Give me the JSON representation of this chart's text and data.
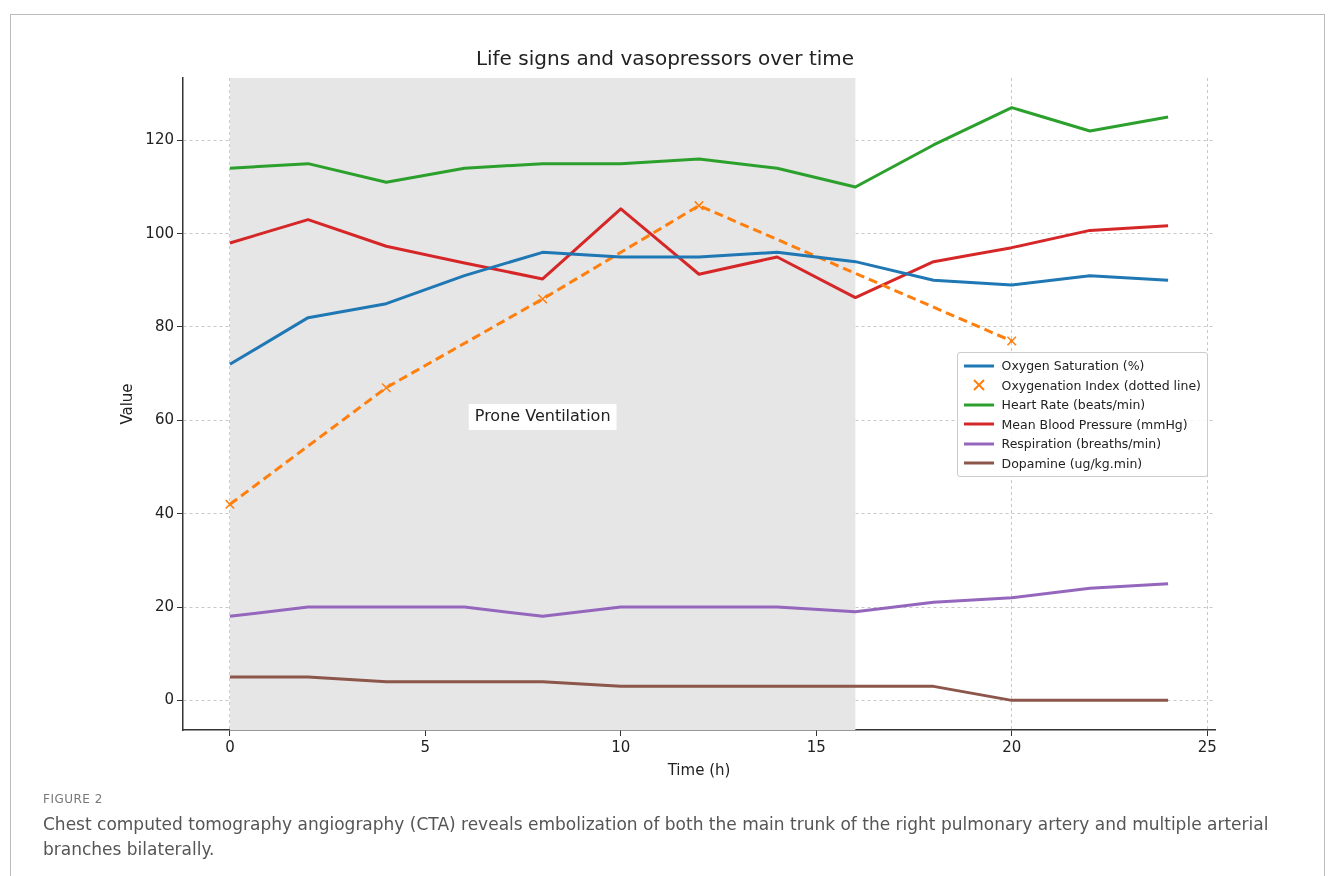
{
  "chart_data": {
    "type": "line",
    "title": "Life signs and vasopressors over time",
    "xlabel": "Time (h)",
    "ylabel": "Value",
    "x": [
      0,
      2,
      4,
      6,
      8,
      10,
      12,
      14,
      16,
      18,
      20,
      22,
      24
    ],
    "xlim": [
      -1.2,
      25.2
    ],
    "xticks": [
      0,
      5,
      10,
      15,
      20,
      25
    ],
    "ylim": [
      -6.35,
      133.35
    ],
    "yticks": [
      0,
      20,
      40,
      60,
      80,
      100,
      120
    ],
    "grid": true,
    "legend": "right",
    "marker": "none",
    "line_style": "solid",
    "series": [
      {
        "name": "Oxygen Saturation (%)",
        "color": "#1f77b4",
        "values": [
          72,
          82,
          85,
          91,
          96,
          95,
          95,
          96,
          94,
          90,
          89,
          91,
          90
        ]
      },
      {
        "name": "Oxygenation Index (dotted line)",
        "color": "#ff7f0e",
        "x": [
          0,
          4,
          8,
          12,
          20
        ],
        "values": [
          42,
          67,
          86,
          106,
          77
        ],
        "marker": "cross",
        "line_style": "dashed"
      },
      {
        "name": "Heart Rate (beats/min)",
        "color": "#2ca02c",
        "values": [
          114,
          115,
          111,
          114,
          115,
          115,
          116,
          114,
          110,
          119,
          127,
          122,
          125
        ]
      },
      {
        "name": "Mean Blood Pressure (mmHg)",
        "color": "#d62728",
        "values": [
          98,
          103,
          97.3,
          93.7,
          90.3,
          105.3,
          91.3,
          95,
          86.3,
          94,
          97,
          100.7,
          101.7
        ]
      },
      {
        "name": "Respiration (breaths/min)",
        "color": "#9467bd",
        "values": [
          18,
          20,
          20,
          20,
          18,
          20,
          20,
          20,
          19,
          21,
          22,
          24,
          25
        ]
      },
      {
        "name": "Dopamine (ug/kg.min)",
        "color": "#8c564b",
        "values": [
          5,
          5,
          4,
          4,
          4,
          3,
          3,
          3,
          3,
          3,
          0,
          0,
          0
        ]
      }
    ],
    "bands": [
      {
        "axis": "x",
        "from": 0,
        "to": 16,
        "label": "Prone Ventilation",
        "color": "#e6e6e6"
      }
    ],
    "annotations": [
      "FIGURE 2",
      "Chest computed tomography angiography (CTA) reveals embolization of both the main trunk of the right pulmonary artery and multiple arterial branches bilaterally."
    ]
  }
}
